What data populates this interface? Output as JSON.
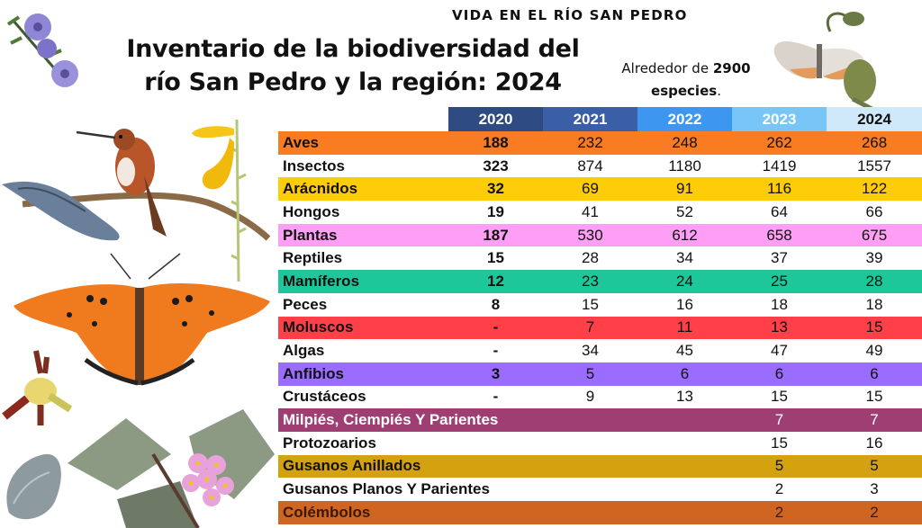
{
  "kicker": "VIDA EN EL RÍO SAN PEDRO",
  "title_line1": "Inventario de la biodiversidad del",
  "title_line2": "río San Pedro y la región: 2024",
  "note": {
    "prefix": "Alrededor de ",
    "count": "2900",
    "suffix_bold": "especies",
    "suffix_end": "."
  },
  "table": {
    "years": [
      {
        "label": "2020",
        "bg": "#2e4b82",
        "fg": "#ffffff"
      },
      {
        "label": "2021",
        "bg": "#3a5fa6",
        "fg": "#ffffff"
      },
      {
        "label": "2022",
        "bg": "#3d97f0",
        "fg": "#ffffff"
      },
      {
        "label": "2023",
        "bg": "#78c6f7",
        "fg": "#ffffff"
      },
      {
        "label": "2024",
        "bg": "#cfe9fb",
        "fg": "#111111"
      }
    ],
    "rows": [
      {
        "name": "Aves",
        "bg": "#f97b22",
        "fg": "#111111",
        "values": [
          "188",
          "232",
          "248",
          "262",
          "268"
        ]
      },
      {
        "name": "Insectos",
        "bg": "#ffffff",
        "fg": "#111111",
        "values": [
          "323",
          "874",
          "1180",
          "1419",
          "1557"
        ]
      },
      {
        "name": "Arácnidos",
        "bg": "#ffcc0a",
        "fg": "#111111",
        "values": [
          "32",
          "69",
          "91",
          "116",
          "122"
        ]
      },
      {
        "name": "Hongos",
        "bg": "#ffffff",
        "fg": "#111111",
        "values": [
          "19",
          "41",
          "52",
          "64",
          "66"
        ]
      },
      {
        "name": "Plantas",
        "bg": "#ff9ef5",
        "fg": "#111111",
        "values": [
          "187",
          "530",
          "612",
          "658",
          "675"
        ]
      },
      {
        "name": "Reptiles",
        "bg": "#ffffff",
        "fg": "#111111",
        "values": [
          "15",
          "28",
          "34",
          "37",
          "39"
        ]
      },
      {
        "name": "Mamíferos",
        "bg": "#1ec79a",
        "fg": "#111111",
        "values": [
          "12",
          "23",
          "24",
          "25",
          "28"
        ]
      },
      {
        "name": "Peces",
        "bg": "#ffffff",
        "fg": "#111111",
        "values": [
          "8",
          "15",
          "16",
          "18",
          "18"
        ]
      },
      {
        "name": "Moluscos",
        "bg": "#ff4048",
        "fg": "#111111",
        "values": [
          "-",
          "7",
          "11",
          "13",
          "15"
        ]
      },
      {
        "name": "Algas",
        "bg": "#ffffff",
        "fg": "#111111",
        "values": [
          "-",
          "34",
          "45",
          "47",
          "49"
        ]
      },
      {
        "name": "Anfibios",
        "bg": "#9a6cff",
        "fg": "#111111",
        "values": [
          "3",
          "5",
          "6",
          "6",
          "6"
        ]
      },
      {
        "name": "Crustáceos",
        "bg": "#ffffff",
        "fg": "#111111",
        "values": [
          "-",
          "9",
          "13",
          "15",
          "15"
        ]
      },
      {
        "name": "Milpiés, Ciempiés Y Parientes",
        "bg": "#9e3e72",
        "fg": "#ffffff",
        "values": [
          "",
          "",
          "",
          "7",
          "7"
        ]
      },
      {
        "name": "Protozoarios",
        "bg": "#ffffff",
        "fg": "#111111",
        "values": [
          "",
          "",
          "",
          "15",
          "16"
        ]
      },
      {
        "name": "Gusanos Anillados",
        "bg": "#d4a20f",
        "fg": "#111111",
        "values": [
          "",
          "",
          "",
          "5",
          "5"
        ]
      },
      {
        "name": "Gusanos Planos Y Parientes",
        "bg": "#ffffff",
        "fg": "#111111",
        "values": [
          "",
          "",
          "",
          "2",
          "3"
        ]
      },
      {
        "name": "Colémbolos",
        "bg": "#cf6520",
        "fg": "#3a1a05",
        "values": [
          "",
          "",
          "",
          "2",
          "2"
        ]
      }
    ]
  }
}
